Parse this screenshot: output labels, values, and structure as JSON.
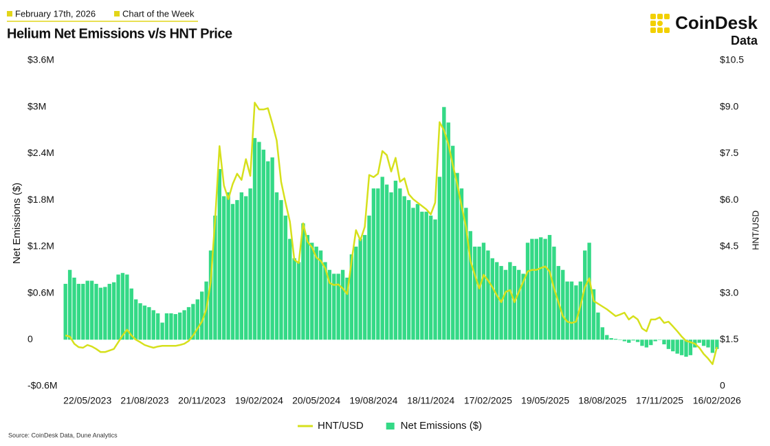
{
  "header": {
    "date": "February 17th, 2026",
    "tag": "Chart of the Week"
  },
  "brand": {
    "name": "CoinDesk",
    "sub": "Data"
  },
  "source": "Source: CoinDesk Data, Dune Analytics",
  "chart_data": {
    "type": "bar",
    "title": "Helium Net Emissions v/s HNT Price",
    "y_label": "Net Emissions ($)",
    "y2_label": "HNT/USD",
    "categories": [
      null,
      null,
      null,
      null,
      null,
      "22/05/2023",
      null,
      null,
      null,
      null,
      null,
      null,
      null,
      null,
      null,
      null,
      null,
      null,
      "21/08/2023",
      null,
      null,
      null,
      null,
      null,
      null,
      null,
      null,
      null,
      null,
      null,
      null,
      "20/11/2023",
      null,
      null,
      null,
      null,
      null,
      null,
      null,
      null,
      null,
      null,
      null,
      null,
      "19/02/2024",
      null,
      null,
      null,
      null,
      null,
      null,
      null,
      null,
      null,
      null,
      null,
      null,
      "20/05/2024",
      null,
      null,
      null,
      null,
      null,
      null,
      null,
      null,
      null,
      null,
      null,
      null,
      "19/08/2024",
      null,
      null,
      null,
      null,
      null,
      null,
      null,
      null,
      null,
      null,
      null,
      null,
      "18/11/2024",
      null,
      null,
      null,
      null,
      null,
      null,
      null,
      null,
      null,
      null,
      null,
      null,
      "17/02/2025",
      null,
      null,
      null,
      null,
      null,
      null,
      null,
      null,
      null,
      null,
      null,
      null,
      "19/05/2025",
      null,
      null,
      null,
      null,
      null,
      null,
      null,
      null,
      null,
      null,
      null,
      null,
      "18/08/2025",
      null,
      null,
      null,
      null,
      null,
      null,
      null,
      null,
      null,
      null,
      null,
      null,
      "17/11/2025",
      null,
      null,
      null,
      null,
      null,
      null,
      null,
      null,
      null,
      null,
      null,
      null,
      "16/02/2026"
    ],
    "series": [
      {
        "name": "HNT/USD",
        "type": "line",
        "axis": "y2",
        "color": "#d6e01c",
        "values": [
          1.64,
          1.6,
          1.37,
          1.26,
          1.24,
          1.33,
          1.28,
          1.2,
          1.1,
          1.1,
          1.15,
          1.2,
          1.42,
          1.64,
          1.82,
          1.64,
          1.5,
          1.42,
          1.33,
          1.28,
          1.24,
          1.28,
          1.3,
          1.3,
          1.3,
          1.3,
          1.33,
          1.37,
          1.46,
          1.64,
          1.86,
          2.08,
          2.48,
          3.37,
          5.37,
          7.74,
          6.47,
          6.03,
          6.52,
          6.85,
          6.65,
          7.32,
          6.78,
          9.14,
          8.92,
          8.92,
          8.96,
          8.47,
          7.92,
          6.59,
          5.92,
          5.3,
          4.08,
          3.97,
          5.25,
          4.66,
          4.48,
          4.15,
          4.04,
          3.81,
          3.33,
          3.26,
          3.28,
          3.15,
          2.97,
          4.04,
          5.03,
          4.7,
          5.14,
          6.81,
          6.74,
          6.85,
          7.58,
          7.45,
          6.92,
          7.36,
          6.59,
          6.7,
          6.19,
          6.03,
          5.92,
          5.81,
          5.7,
          5.54,
          5.92,
          8.51,
          8.25,
          7.8,
          7.14,
          6.52,
          5.81,
          5.14,
          4.04,
          3.59,
          3.15,
          3.59,
          3.41,
          3.19,
          2.93,
          2.71,
          3.04,
          3.1,
          2.71,
          3.04,
          3.37,
          3.7,
          3.75,
          3.75,
          3.81,
          3.86,
          3.7,
          3.15,
          2.71,
          2.26,
          2.08,
          2.04,
          2.08,
          2.59,
          3.19,
          3.48,
          2.75,
          2.66,
          2.57,
          2.48,
          2.37,
          2.26,
          2.31,
          2.37,
          2.15,
          2.26,
          2.15,
          1.86,
          1.77,
          2.15,
          2.15,
          2.22,
          2.04,
          2.08,
          1.93,
          1.77,
          1.6,
          1.46,
          1.42,
          1.37,
          1.24,
          1.04,
          0.89,
          0.71,
          1.26
        ]
      },
      {
        "name": "Net Emissions ($)",
        "type": "bar",
        "color": "#34d986",
        "values": [
          720000,
          900000,
          800000,
          720000,
          720000,
          760000,
          760000,
          720000,
          670000,
          680000,
          720000,
          740000,
          840000,
          860000,
          840000,
          660000,
          520000,
          470000,
          440000,
          420000,
          380000,
          340000,
          220000,
          340000,
          340000,
          330000,
          350000,
          380000,
          420000,
          460000,
          520000,
          620000,
          750000,
          1150000,
          1600000,
          2200000,
          1850000,
          1900000,
          1750000,
          1800000,
          1900000,
          1850000,
          1950000,
          2600000,
          2550000,
          2450000,
          2300000,
          2350000,
          1900000,
          1800000,
          1600000,
          1300000,
          1050000,
          1000000,
          1500000,
          1350000,
          1250000,
          1200000,
          1150000,
          1000000,
          900000,
          850000,
          850000,
          900000,
          800000,
          1100000,
          1200000,
          1300000,
          1350000,
          1600000,
          1950000,
          1950000,
          2100000,
          2000000,
          1900000,
          2050000,
          1950000,
          1850000,
          1800000,
          1700000,
          1750000,
          1650000,
          1650000,
          1600000,
          1550000,
          2100000,
          3000000,
          2800000,
          2500000,
          2150000,
          1950000,
          1700000,
          1400000,
          1200000,
          1200000,
          1250000,
          1150000,
          1050000,
          1000000,
          950000,
          900000,
          1000000,
          950000,
          900000,
          850000,
          1250000,
          1300000,
          1300000,
          1320000,
          1300000,
          1350000,
          1200000,
          950000,
          900000,
          750000,
          750000,
          700000,
          750000,
          1150000,
          1250000,
          650000,
          350000,
          160000,
          60000,
          20000,
          10000,
          0,
          -20000,
          -40000,
          -10000,
          -30000,
          -80000,
          -100000,
          -70000,
          -20000,
          0,
          -60000,
          -120000,
          -150000,
          -180000,
          -200000,
          -220000,
          -200000,
          -100000,
          -40000,
          -80000,
          -100000,
          -170000,
          -120000
        ]
      }
    ],
    "ylim": [
      -600000,
      3600000
    ],
    "yticks": [
      {
        "value": -600000,
        "label": "-$0.6M"
      },
      0,
      {
        "value": 600000,
        "label": "$0.6M"
      },
      {
        "value": 1200000,
        "label": "$1.2M"
      },
      {
        "value": 1800000,
        "label": "$1.8M"
      },
      {
        "value": 2400000,
        "label": "$2.4M"
      },
      {
        "value": 3000000,
        "label": "$3M"
      },
      {
        "value": 3600000,
        "label": "$3.6M"
      }
    ],
    "y2lim": [
      0,
      10.5
    ],
    "y2ticks": [
      0,
      {
        "value": 1.5,
        "label": "$1.5"
      },
      {
        "value": 3,
        "label": "$3.0"
      },
      {
        "value": 4.5,
        "label": "$4.5"
      },
      {
        "value": 6,
        "label": "$6.0"
      },
      {
        "value": 7.5,
        "label": "$7.5"
      },
      {
        "value": 9,
        "label": "$9.0"
      },
      {
        "value": 10.5,
        "label": "$10.5"
      }
    ],
    "grid": false
  }
}
